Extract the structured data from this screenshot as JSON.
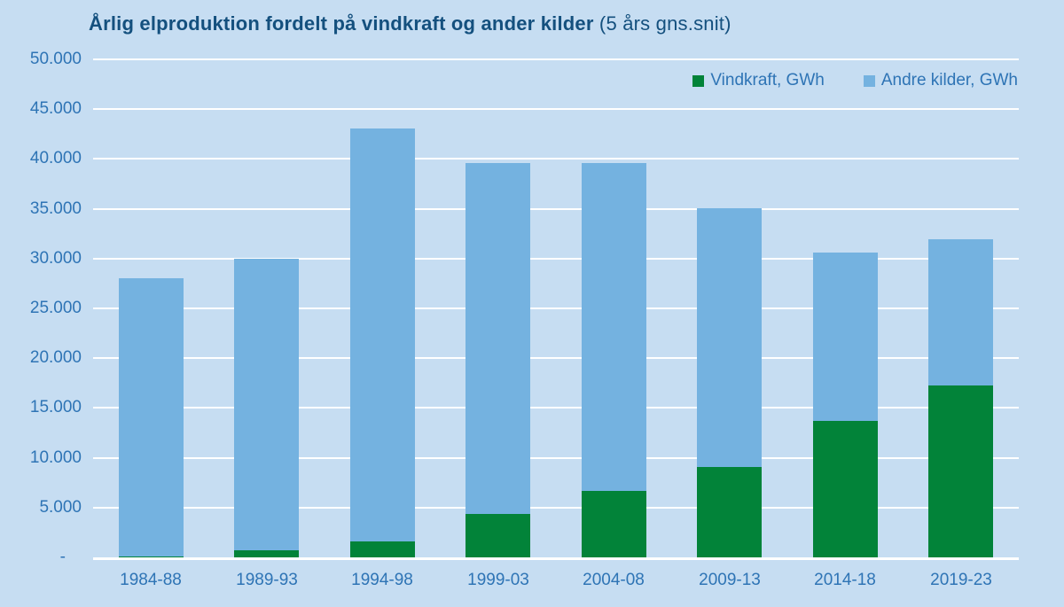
{
  "title": {
    "main": "Årlig elproduktion fordelt på vindkraft og ander kilder",
    "suffix": " (5 års gns.snit)"
  },
  "colors": {
    "background": "#c6ddf2",
    "title_text": "#14507e",
    "axis_text": "#2e74b5",
    "gridline": "#ffffff",
    "vindkraft": "#028339",
    "andre_kilder": "#74b2e0"
  },
  "chart_data": {
    "type": "bar",
    "stacked": true,
    "title": "Årlig elproduktion fordelt på vindkraft og ander kilder (5 års gns.snit)",
    "unit": "GWh",
    "categories": [
      "1984-88",
      "1989-93",
      "1994-98",
      "1999-03",
      "2004-08",
      "2009-13",
      "2014-18",
      "2019-23"
    ],
    "series": [
      {
        "name": "Vindkraft, GWh",
        "color": "#028339",
        "values": [
          100,
          700,
          1600,
          4400,
          6700,
          9100,
          13700,
          17300
        ]
      },
      {
        "name": "Andre kilder, GWh",
        "color": "#74b2e0",
        "values": [
          27900,
          29300,
          41500,
          35200,
          32900,
          26000,
          16900,
          14700
        ]
      }
    ],
    "totals": [
      28000,
      30000,
      43100,
      39600,
      39600,
      35100,
      30600,
      32000
    ],
    "ylim": [
      0,
      50000
    ],
    "ytick_step": 5000,
    "yticks": [
      {
        "value": 0,
        "label": "-"
      },
      {
        "value": 5000,
        "label": "5.000"
      },
      {
        "value": 10000,
        "label": "10.000"
      },
      {
        "value": 15000,
        "label": "15.000"
      },
      {
        "value": 20000,
        "label": "20.000"
      },
      {
        "value": 25000,
        "label": "25.000"
      },
      {
        "value": 30000,
        "label": "30.000"
      },
      {
        "value": 35000,
        "label": "35.000"
      },
      {
        "value": 40000,
        "label": "40.000"
      },
      {
        "value": 45000,
        "label": "45.000"
      },
      {
        "value": 50000,
        "label": "50.000"
      }
    ],
    "grid": true,
    "legend_position": "top-right"
  }
}
